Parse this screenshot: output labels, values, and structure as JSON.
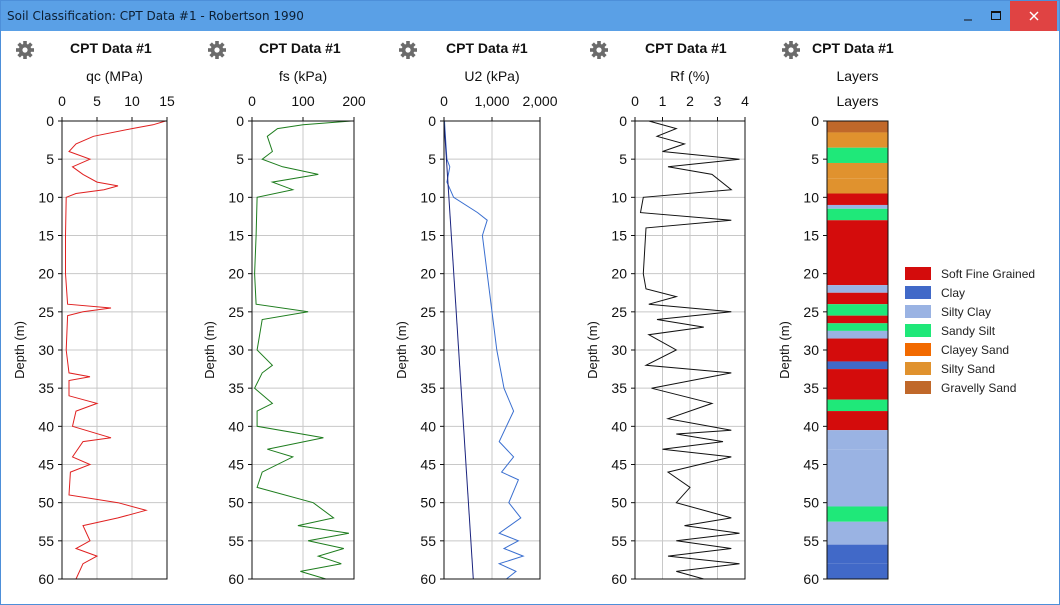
{
  "window": {
    "title": "Soil Classification: CPT Data #1 - Robertson 1990"
  },
  "panel_titles": [
    "CPT Data #1",
    "CPT Data #1",
    "CPT Data #1",
    "CPT Data #1",
    "CPT Data #1"
  ],
  "chart_data": [
    {
      "type": "line",
      "title": "CPT Data #1",
      "xlabel": "qc (MPa)",
      "ylabel": "Depth (m)",
      "xlim": [
        0,
        15
      ],
      "ylim": [
        0,
        60
      ],
      "x_ticks": [
        "0",
        "5",
        "10",
        "15"
      ],
      "y_ticks": [
        "0",
        "5",
        "10",
        "15",
        "20",
        "25",
        "30",
        "35",
        "40",
        "45",
        "50",
        "55",
        "60"
      ],
      "x_axis_position": "top",
      "grid": true,
      "series": [
        {
          "color": "#e02020",
          "points": [
            [
              14.8,
              0
            ],
            [
              13,
              0.5
            ],
            [
              10,
              1
            ],
            [
              4.5,
              2
            ],
            [
              2,
              3
            ],
            [
              1,
              4
            ],
            [
              4,
              5
            ],
            [
              1.5,
              6
            ],
            [
              3,
              7
            ],
            [
              5,
              8
            ],
            [
              8,
              8.5
            ],
            [
              6,
              9
            ],
            [
              2,
              9.5
            ],
            [
              0.6,
              10
            ],
            [
              0.5,
              15
            ],
            [
              0.5,
              20
            ],
            [
              0.8,
              24
            ],
            [
              7,
              24.5
            ],
            [
              3,
              25
            ],
            [
              0.8,
              25.5
            ],
            [
              0.6,
              30
            ],
            [
              1,
              33
            ],
            [
              4,
              33.5
            ],
            [
              1,
              34
            ],
            [
              1,
              36
            ],
            [
              5,
              37
            ],
            [
              2,
              38
            ],
            [
              1.5,
              40
            ],
            [
              7,
              41.5
            ],
            [
              3,
              42
            ],
            [
              1.5,
              44
            ],
            [
              4,
              45
            ],
            [
              1.2,
              46
            ],
            [
              1,
              49
            ],
            [
              8,
              50
            ],
            [
              12,
              51
            ],
            [
              8,
              52
            ],
            [
              3,
              53
            ],
            [
              4,
              55
            ],
            [
              2,
              56
            ],
            [
              5,
              57
            ],
            [
              3,
              58
            ],
            [
              2,
              60
            ]
          ]
        }
      ]
    },
    {
      "type": "line",
      "title": "CPT Data #1",
      "xlabel": "fs (kPa)",
      "ylabel": "Depth (m)",
      "xlim": [
        0,
        200
      ],
      "ylim": [
        0,
        60
      ],
      "x_ticks": [
        "0",
        "100",
        "200"
      ],
      "y_ticks": [
        "0",
        "5",
        "10",
        "15",
        "20",
        "25",
        "30",
        "35",
        "40",
        "45",
        "50",
        "55",
        "60"
      ],
      "x_axis_position": "top",
      "grid": true,
      "series": [
        {
          "color": "#1e7d1e",
          "points": [
            [
              195,
              0
            ],
            [
              100,
              0.5
            ],
            [
              50,
              1
            ],
            [
              30,
              2
            ],
            [
              40,
              4
            ],
            [
              20,
              5
            ],
            [
              60,
              6
            ],
            [
              130,
              7
            ],
            [
              40,
              8
            ],
            [
              80,
              9
            ],
            [
              10,
              10
            ],
            [
              8,
              15
            ],
            [
              5,
              20
            ],
            [
              8,
              24
            ],
            [
              110,
              25
            ],
            [
              20,
              26
            ],
            [
              10,
              30
            ],
            [
              40,
              32
            ],
            [
              20,
              33
            ],
            [
              5,
              35
            ],
            [
              40,
              37
            ],
            [
              10,
              38
            ],
            [
              10,
              40
            ],
            [
              140,
              41.5
            ],
            [
              30,
              43
            ],
            [
              80,
              44
            ],
            [
              20,
              46
            ],
            [
              10,
              48
            ],
            [
              120,
              50
            ],
            [
              160,
              52
            ],
            [
              90,
              53
            ],
            [
              190,
              54
            ],
            [
              110,
              55
            ],
            [
              180,
              56
            ],
            [
              130,
              57
            ],
            [
              175,
              58
            ],
            [
              95,
              59
            ],
            [
              145,
              60
            ]
          ]
        }
      ]
    },
    {
      "type": "line",
      "title": "CPT Data #1",
      "xlabel": "U2 (kPa)",
      "ylabel": "Depth (m)",
      "xlim": [
        0,
        2000
      ],
      "ylim": [
        0,
        60
      ],
      "x_ticks": [
        "0",
        "1,000",
        "2,000"
      ],
      "y_ticks": [
        "0",
        "5",
        "10",
        "15",
        "20",
        "25",
        "30",
        "35",
        "40",
        "45",
        "50",
        "55",
        "60"
      ],
      "x_axis_position": "top",
      "grid": true,
      "series": [
        {
          "color": "#3a6fd0",
          "points": [
            [
              10,
              0
            ],
            [
              30,
              2
            ],
            [
              60,
              5
            ],
            [
              120,
              6
            ],
            [
              60,
              8
            ],
            [
              200,
              10
            ],
            [
              700,
              12
            ],
            [
              900,
              13
            ],
            [
              800,
              15
            ],
            [
              900,
              20
            ],
            [
              1000,
              25
            ],
            [
              1100,
              30
            ],
            [
              1250,
              35
            ],
            [
              1450,
              38
            ],
            [
              1300,
              40
            ],
            [
              1150,
              42
            ],
            [
              1450,
              44
            ],
            [
              1200,
              46
            ],
            [
              1550,
              47
            ],
            [
              1350,
              50
            ],
            [
              1600,
              52
            ],
            [
              1150,
              54
            ],
            [
              1550,
              55
            ],
            [
              1250,
              56
            ],
            [
              1650,
              57
            ],
            [
              1150,
              58
            ],
            [
              1500,
              59
            ],
            [
              1300,
              60
            ]
          ]
        },
        {
          "color": "#1a237e",
          "points": [
            [
              0,
              0
            ],
            [
              610,
              60
            ]
          ]
        }
      ]
    },
    {
      "type": "line",
      "title": "CPT Data #1",
      "xlabel": "Rf (%)",
      "ylabel": "Depth (m)",
      "xlim": [
        0,
        4
      ],
      "ylim": [
        0,
        60
      ],
      "x_ticks": [
        "0",
        "1",
        "2",
        "3",
        "4"
      ],
      "y_ticks": [
        "0",
        "5",
        "10",
        "15",
        "20",
        "25",
        "30",
        "35",
        "40",
        "45",
        "50",
        "55",
        "60"
      ],
      "x_axis_position": "top",
      "grid": true,
      "series": [
        {
          "color": "#111111",
          "points": [
            [
              0.5,
              0
            ],
            [
              1.5,
              1
            ],
            [
              0.8,
              2
            ],
            [
              1.8,
              3
            ],
            [
              1,
              4
            ],
            [
              3.8,
              5
            ],
            [
              1.2,
              6
            ],
            [
              2.8,
              7
            ],
            [
              3.5,
              9
            ],
            [
              0.3,
              10
            ],
            [
              0.2,
              12
            ],
            [
              3.5,
              13
            ],
            [
              0.4,
              14
            ],
            [
              0.3,
              20
            ],
            [
              0.4,
              22
            ],
            [
              1.5,
              23
            ],
            [
              0.5,
              24
            ],
            [
              3.5,
              25
            ],
            [
              0.8,
              26
            ],
            [
              2.5,
              27
            ],
            [
              0.5,
              28
            ],
            [
              1.5,
              30
            ],
            [
              0.4,
              32
            ],
            [
              3.5,
              33
            ],
            [
              0.6,
              35
            ],
            [
              2.8,
              37
            ],
            [
              1.2,
              39
            ],
            [
              3.5,
              40.5
            ],
            [
              1.5,
              41
            ],
            [
              3.2,
              42
            ],
            [
              1,
              43
            ],
            [
              3.5,
              44
            ],
            [
              1.2,
              46
            ],
            [
              2,
              48
            ],
            [
              1.5,
              50
            ],
            [
              3.5,
              52
            ],
            [
              1.8,
              53
            ],
            [
              3.8,
              54
            ],
            [
              1.5,
              55
            ],
            [
              3.5,
              56
            ],
            [
              1.2,
              57
            ],
            [
              3.8,
              58
            ],
            [
              1.5,
              59
            ],
            [
              2.5,
              60
            ]
          ]
        }
      ]
    },
    {
      "type": "bar",
      "title": "CPT Data #1",
      "xlabel": "Layers",
      "ylabel": "Depth (m)",
      "ylim": [
        0,
        60
      ],
      "y_ticks": [
        "0",
        "5",
        "10",
        "15",
        "20",
        "25",
        "30",
        "35",
        "40",
        "45",
        "50",
        "55",
        "60"
      ],
      "legend_position": "right",
      "legend": [
        {
          "name": "Soft Fine Grained",
          "color": "#d40c0c"
        },
        {
          "name": "Clay",
          "color": "#4169c8"
        },
        {
          "name": "Silty Clay",
          "color": "#9ab3e3"
        },
        {
          "name": "Sandy Silt",
          "color": "#1fe879"
        },
        {
          "name": "Clayey Sand",
          "color": "#f26a00"
        },
        {
          "name": "Silty Sand",
          "color": "#e0922e"
        },
        {
          "name": "Gravelly Sand",
          "color": "#c0682a"
        }
      ],
      "layers": [
        {
          "top": 0,
          "bottom": 1.5,
          "soil": "Gravelly Sand"
        },
        {
          "top": 1.5,
          "bottom": 3.5,
          "soil": "Silty Sand"
        },
        {
          "top": 3.5,
          "bottom": 5.5,
          "soil": "Sandy Silt"
        },
        {
          "top": 5.5,
          "bottom": 7.5,
          "soil": "Silty Sand"
        },
        {
          "top": 7.5,
          "bottom": 9.5,
          "soil": "Silty Sand"
        },
        {
          "top": 9.5,
          "bottom": 11,
          "soil": "Soft Fine Grained"
        },
        {
          "top": 11,
          "bottom": 11.5,
          "soil": "Silty Clay"
        },
        {
          "top": 11.5,
          "bottom": 13,
          "soil": "Sandy Silt"
        },
        {
          "top": 13,
          "bottom": 21.5,
          "soil": "Soft Fine Grained"
        },
        {
          "top": 21.5,
          "bottom": 22.5,
          "soil": "Silty Clay"
        },
        {
          "top": 22.5,
          "bottom": 24,
          "soil": "Soft Fine Grained"
        },
        {
          "top": 24,
          "bottom": 25.5,
          "soil": "Sandy Silt"
        },
        {
          "top": 25.5,
          "bottom": 26.5,
          "soil": "Soft Fine Grained"
        },
        {
          "top": 26.5,
          "bottom": 27.5,
          "soil": "Sandy Silt"
        },
        {
          "top": 27.5,
          "bottom": 28.5,
          "soil": "Silty Clay"
        },
        {
          "top": 28.5,
          "bottom": 31.5,
          "soil": "Soft Fine Grained"
        },
        {
          "top": 31.5,
          "bottom": 32.5,
          "soil": "Clay"
        },
        {
          "top": 32.5,
          "bottom": 36.5,
          "soil": "Soft Fine Grained"
        },
        {
          "top": 36.5,
          "bottom": 38,
          "soil": "Sandy Silt"
        },
        {
          "top": 38,
          "bottom": 40.5,
          "soil": "Soft Fine Grained"
        },
        {
          "top": 40.5,
          "bottom": 43,
          "soil": "Silty Clay"
        },
        {
          "top": 43,
          "bottom": 50.5,
          "soil": "Silty Clay"
        },
        {
          "top": 50.5,
          "bottom": 52.5,
          "soil": "Sandy Silt"
        },
        {
          "top": 52.5,
          "bottom": 55.5,
          "soil": "Silty Clay"
        },
        {
          "top": 55.5,
          "bottom": 58,
          "soil": "Clay"
        },
        {
          "top": 58,
          "bottom": 60,
          "soil": "Clay"
        }
      ]
    }
  ]
}
